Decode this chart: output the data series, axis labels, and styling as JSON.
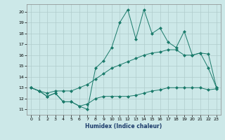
{
  "xlabel": "Humidex (Indice chaleur)",
  "bg_color": "#cce8e8",
  "grid_color": "#b0cccc",
  "line_color": "#1a7a6a",
  "xlim": [
    -0.5,
    23.5
  ],
  "ylim": [
    10.5,
    20.7
  ],
  "xticks": [
    0,
    1,
    2,
    3,
    4,
    5,
    6,
    7,
    8,
    9,
    10,
    11,
    12,
    13,
    14,
    15,
    16,
    17,
    18,
    19,
    20,
    21,
    22,
    23
  ],
  "yticks": [
    11,
    12,
    13,
    14,
    15,
    16,
    17,
    18,
    19,
    20
  ],
  "series1_x": [
    0,
    1,
    2,
    3,
    4,
    5,
    6,
    7,
    8,
    9,
    10,
    11,
    12,
    13,
    14,
    15,
    16,
    17,
    18,
    19,
    20,
    21,
    22,
    23
  ],
  "series1_y": [
    13.0,
    12.7,
    12.2,
    12.5,
    11.7,
    11.7,
    11.3,
    11.5,
    12.0,
    12.2,
    12.2,
    12.2,
    12.2,
    12.3,
    12.5,
    12.7,
    12.8,
    13.0,
    13.0,
    13.0,
    13.0,
    13.0,
    12.8,
    12.9
  ],
  "series2_x": [
    0,
    1,
    2,
    3,
    4,
    5,
    6,
    7,
    8,
    9,
    10,
    11,
    12,
    13,
    14,
    15,
    16,
    17,
    18,
    19,
    20,
    21,
    22,
    23
  ],
  "series2_y": [
    13.0,
    12.7,
    12.5,
    12.7,
    12.7,
    12.7,
    13.0,
    13.3,
    13.8,
    14.3,
    14.8,
    15.1,
    15.4,
    15.7,
    16.0,
    16.2,
    16.3,
    16.5,
    16.5,
    16.0,
    16.0,
    16.2,
    16.1,
    13.0
  ],
  "series3_x": [
    0,
    1,
    2,
    3,
    4,
    5,
    6,
    7,
    8,
    9,
    10,
    11,
    12,
    13,
    14,
    15,
    16,
    17,
    18,
    19,
    20,
    21,
    22,
    23
  ],
  "series3_y": [
    13.0,
    12.7,
    12.2,
    12.5,
    11.7,
    11.7,
    11.3,
    11.0,
    14.8,
    15.5,
    16.7,
    19.0,
    20.2,
    17.5,
    20.2,
    18.0,
    18.5,
    17.2,
    16.7,
    18.2,
    16.0,
    16.2,
    14.8,
    13.0
  ]
}
